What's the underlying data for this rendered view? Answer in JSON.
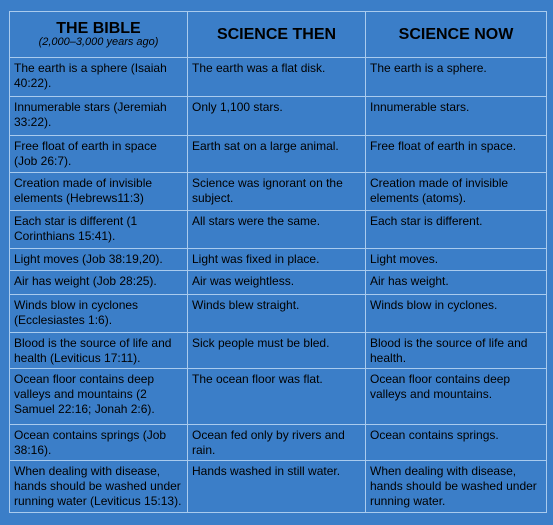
{
  "table": {
    "header": {
      "bible": "THE BIBLE",
      "bible_sub": "(2,000–3,000 years ago)",
      "then": "SCIENCE THEN",
      "now": "SCIENCE NOW"
    },
    "rows": [
      [
        "The earth is a sphere (Isaiah 40:22).",
        "The earth was a flat disk.",
        "The earth is a sphere."
      ],
      [
        "Innumerable stars (Jeremiah 33:22).",
        "Only 1,100 stars.",
        "Innumerable stars."
      ],
      [
        "Free float of earth in space (Job 26:7).",
        "Earth sat on a large animal.",
        "Free float of earth in space."
      ],
      [
        "Creation made of invisible elements (Hebrews11:3)",
        "Science was ignorant on the subject.",
        "Creation made of invisible elements (atoms)."
      ],
      [
        "Each star is different (1 Corinthians 15:41).",
        "All stars were the same.",
        "Each star is different."
      ],
      [
        "Light moves (Job 38:19,20).",
        "Light was fixed in place.",
        "Light moves."
      ],
      [
        "Air has weight (Job 28:25).",
        "Air was weightless.",
        "Air has weight."
      ],
      [
        "Winds blow in cyclones (Ecclesiastes 1:6).",
        "Winds blew straight.",
        "Winds blow in cyclones."
      ],
      [
        "Blood is the source of life and health (Leviticus 17:11).",
        "Sick people must be bled.",
        "Blood is the source of life and health."
      ],
      [
        "Ocean floor contains deep valleys and mountains (2 Samuel 22:16; Jonah 2:6).",
        "The ocean floor was flat.",
        "Ocean floor contains deep valleys and mountains."
      ],
      [
        "Ocean contains springs (Job 38:16).",
        "Ocean fed only by rivers and rain.",
        "Ocean contains springs."
      ],
      [
        "When dealing with disease, hands should be washed under running water (Leviticus 15:13).",
        "Hands washed in still water.",
        "When dealing with disease, hands should be washed under running water."
      ]
    ]
  }
}
